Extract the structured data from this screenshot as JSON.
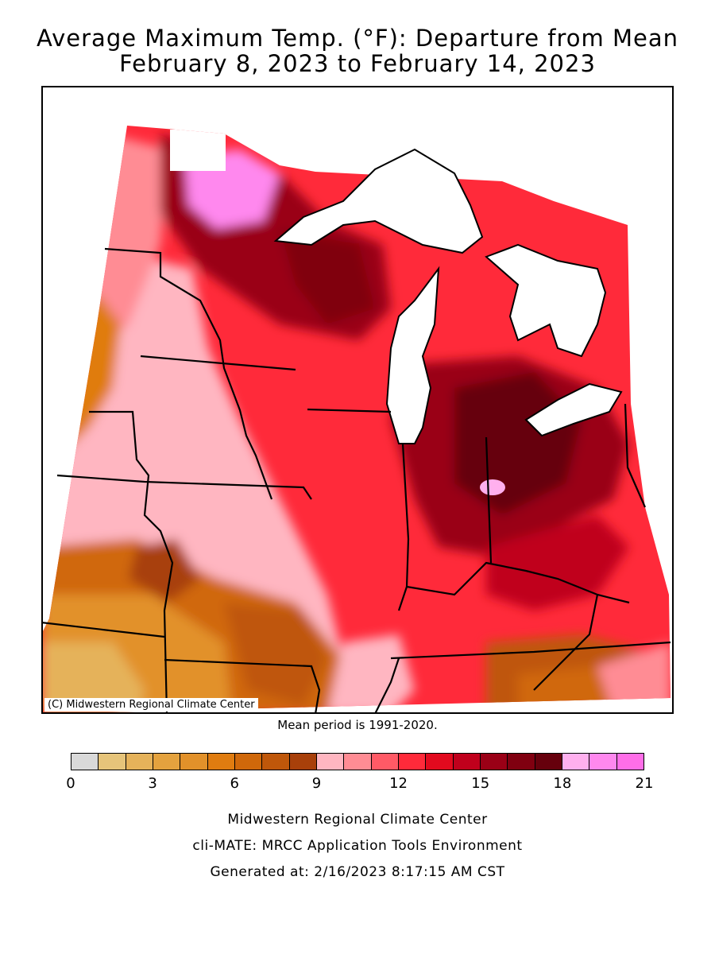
{
  "title": {
    "line1": "Average Maximum Temp. (°F): Departure from Mean",
    "line2": "February 8, 2023 to February 14, 2023"
  },
  "map": {
    "credit": "(C) Midwestern Regional Climate Center",
    "mean_period": "Mean period is 1991-2020."
  },
  "legend": {
    "min": 0,
    "max": 21,
    "tick_labels": [
      "0",
      "3",
      "6",
      "9",
      "12",
      "15",
      "18",
      "21"
    ],
    "colors": [
      "#d9d9d9",
      "#e6c47a",
      "#e5b25a",
      "#e4a23e",
      "#e2912a",
      "#e07c10",
      "#d0680a",
      "#bf570a",
      "#a8400a",
      "#ffb6c1",
      "#ff8c94",
      "#ff5a66",
      "#ff2a3a",
      "#e20a1e",
      "#c0001c",
      "#9a0016",
      "#800010",
      "#66000c",
      "#ffb0ee",
      "#ff88ee",
      "#ff6ee8"
    ]
  },
  "footer": {
    "line1": "Midwestern Regional Climate Center",
    "line2": "cli-MATE: MRCC Application Tools Environment",
    "line3": "Generated at: 2/16/2023 8:17:15 AM CST"
  }
}
